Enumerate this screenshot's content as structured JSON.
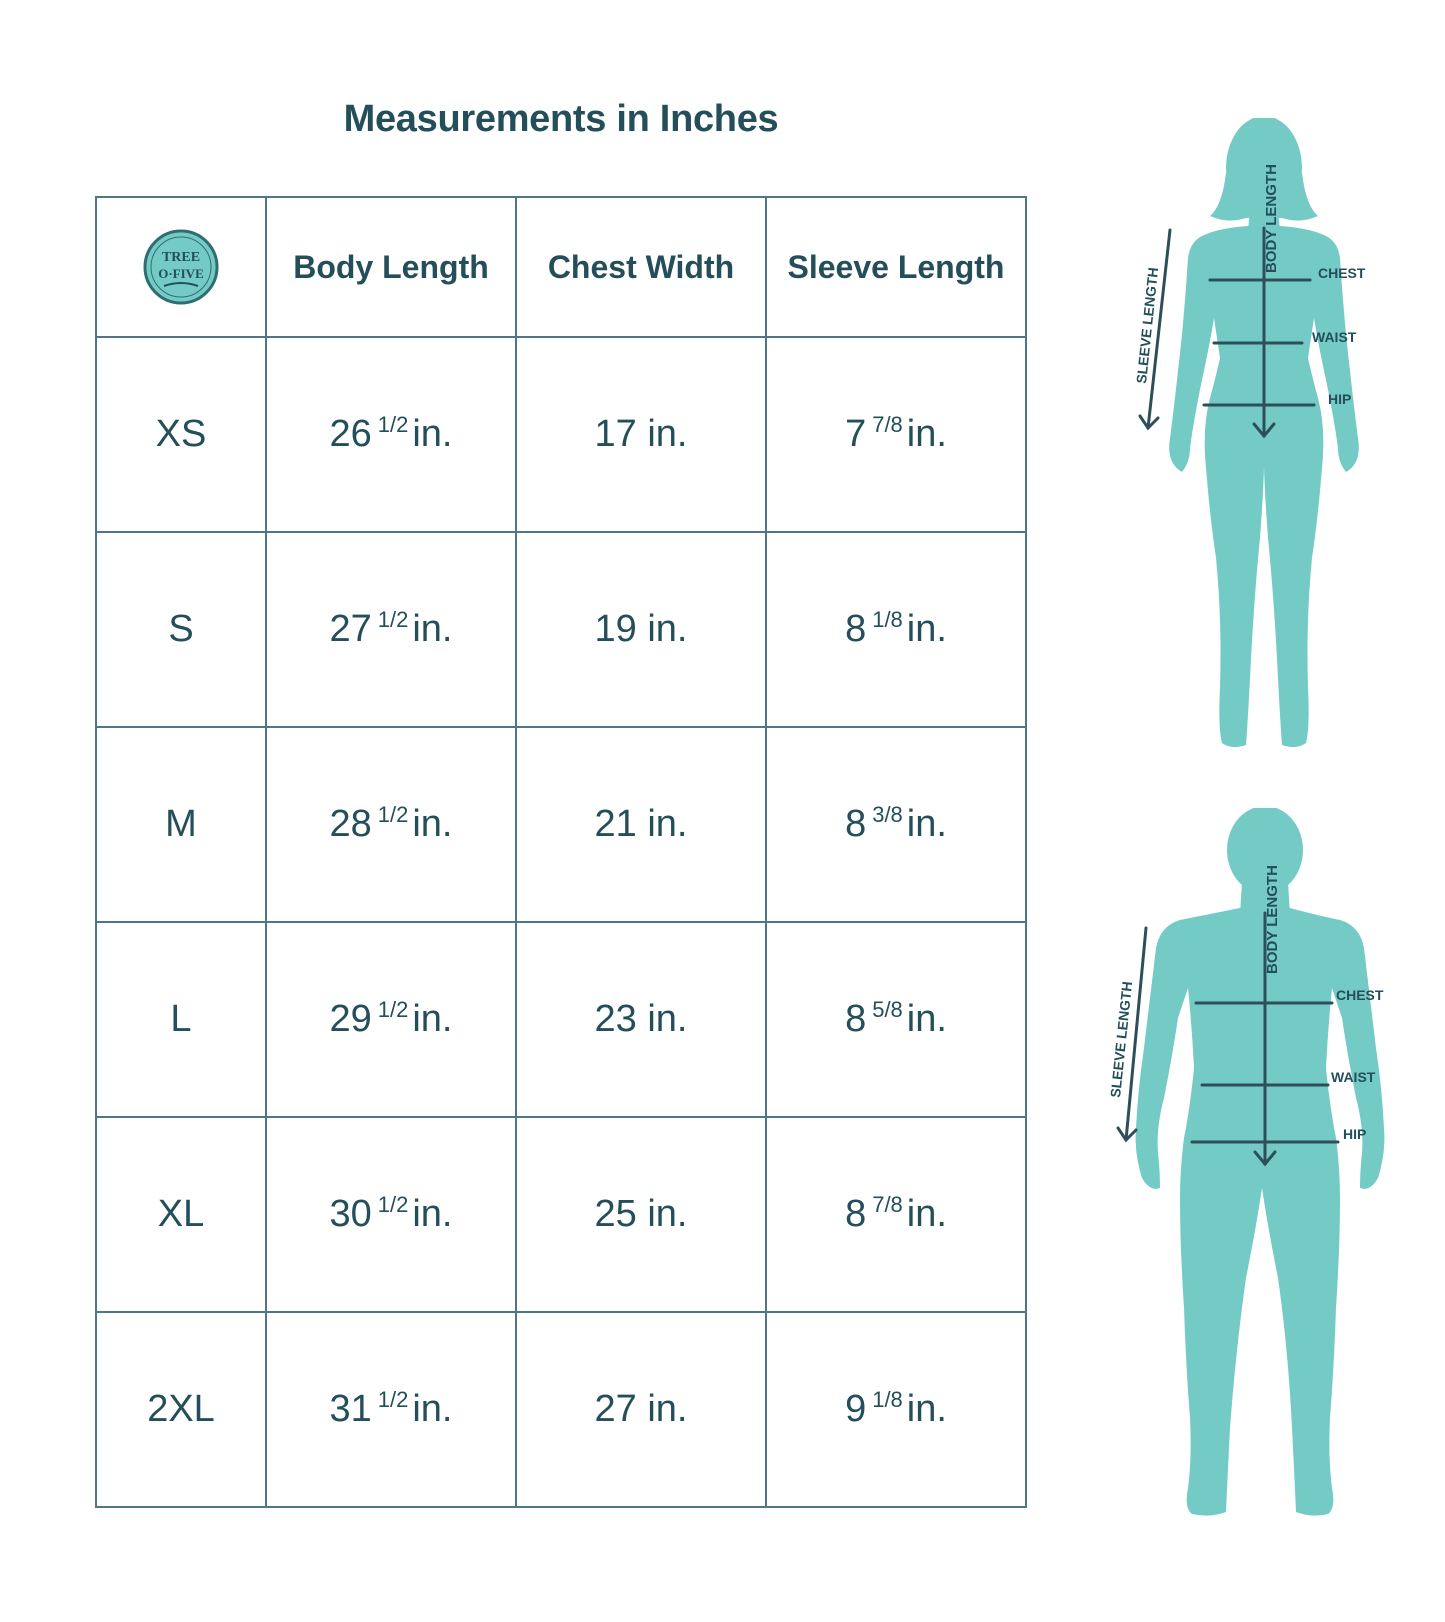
{
  "title": "Measurements in Inches",
  "logo": {
    "icon": "tree-o-five-logo",
    "text_line1": "TREE",
    "text_line2": "O·FIVE"
  },
  "columns": [
    "Body Length",
    "Chest Width",
    "Sleeve Length"
  ],
  "rows": [
    {
      "size": "XS",
      "body_whole": "26",
      "body_frac": "1/2",
      "chest": "17 in.",
      "sleeve_whole": "7",
      "sleeve_frac": "7/8",
      "unit": "in."
    },
    {
      "size": "S",
      "body_whole": "27",
      "body_frac": "1/2",
      "chest": "19 in.",
      "sleeve_whole": "8",
      "sleeve_frac": "1/8",
      "unit": "in."
    },
    {
      "size": "M",
      "body_whole": "28",
      "body_frac": "1/2",
      "chest": "21 in.",
      "sleeve_whole": "8",
      "sleeve_frac": "3/8",
      "unit": "in."
    },
    {
      "size": "L",
      "body_whole": "29",
      "body_frac": "1/2",
      "chest": "23 in.",
      "sleeve_whole": "8",
      "sleeve_frac": "5/8",
      "unit": "in."
    },
    {
      "size": "XL",
      "body_whole": "30",
      "body_frac": "1/2",
      "chest": "25 in.",
      "sleeve_whole": "8",
      "sleeve_frac": "7/8",
      "unit": "in."
    },
    {
      "size": "2XL",
      "body_whole": "31",
      "body_frac": "1/2",
      "chest": "27 in.",
      "sleeve_whole": "9",
      "sleeve_frac": "1/8",
      "unit": "in."
    }
  ],
  "diagram_labels": {
    "sleeve_length": "SLEEVE LENGTH",
    "body_length": "BODY LENGTH",
    "chest": "CHEST",
    "waist": "WAIST",
    "hip": "HIP"
  },
  "colors": {
    "text": "#244f5a",
    "border": "#4f7588",
    "figure": "#74cbc6",
    "line": "#2e4f5a"
  }
}
